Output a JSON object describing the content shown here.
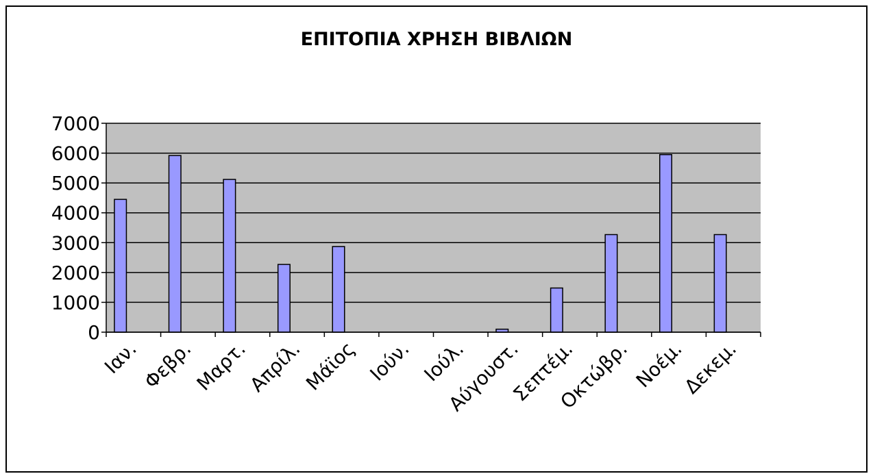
{
  "chart_data": {
    "type": "bar",
    "title": "ΕΠΙΤΟΠΙΑ ΧΡΗΣΗ ΒΙΒΛΙΩΝ",
    "categories": [
      "Ιαν.",
      "Φεβρ.",
      "Μαρτ.",
      "Απρίλ.",
      "Μάϊος",
      "Ιούν.",
      "Ιούλ.",
      "Αύγουστ.",
      "Σεπτέμ.",
      "Οκτώβρ.",
      "Νοέμ.",
      "Δεκεμ."
    ],
    "values": [
      4450,
      5920,
      5120,
      2270,
      2870,
      0,
      0,
      100,
      1480,
      3270,
      5950,
      3270
    ],
    "color": "#9999ff",
    "ylim": [
      0,
      7000
    ],
    "yticks": [
      0,
      1000,
      2000,
      3000,
      4000,
      5000,
      6000,
      7000
    ],
    "grid": true
  }
}
